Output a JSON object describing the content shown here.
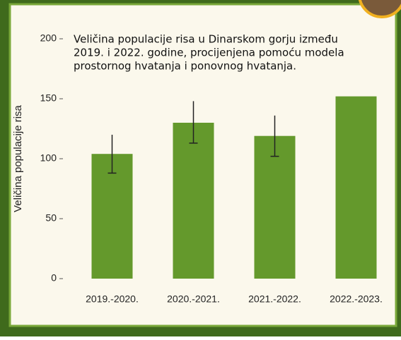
{
  "chart_data": {
    "type": "bar",
    "title": [
      "Veličina populacije risa u Dinarskom gorju između",
      "2019. i 2022. godine, procijenjena pomoću modela",
      "prostornog hvatanja i ponovnog hvatanja."
    ],
    "y_label": "Veličina populacije risa",
    "categories": [
      "2019.-2020.",
      "2020.-2021.",
      "2021.-2022.",
      "2022.-2023."
    ],
    "values": [
      104,
      130,
      119,
      152
    ],
    "error_low": [
      88,
      113,
      102,
      null
    ],
    "error_high": [
      120,
      148,
      136,
      null
    ],
    "color": "#64992c",
    "ylim": [
      0,
      200
    ],
    "yticks": [
      0,
      50,
      100,
      150,
      200
    ],
    "grid": false
  }
}
